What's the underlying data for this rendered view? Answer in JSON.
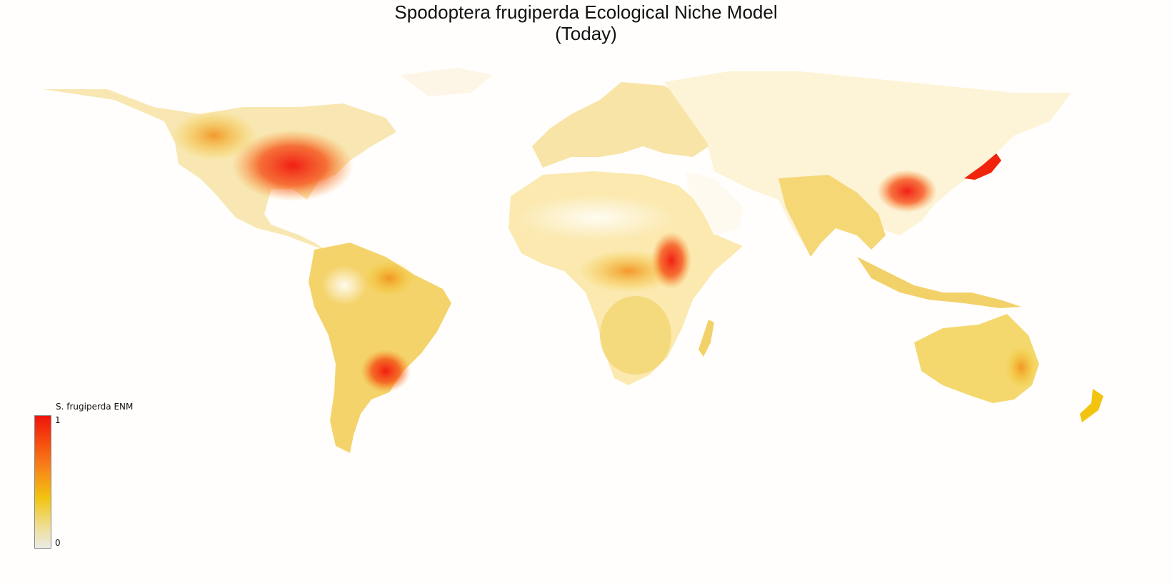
{
  "map": {
    "title_line1": "Spodoptera frugiperda Ecological Niche Model",
    "title_line2": "(Today)",
    "colors": {
      "background": "#fffefc",
      "low": "#f5e7a8",
      "mid": "#f2c40f",
      "high": "#f0140c"
    }
  },
  "legend": {
    "title": "S. frugiperda ENM",
    "max_label": "1",
    "min_label": "0"
  }
}
